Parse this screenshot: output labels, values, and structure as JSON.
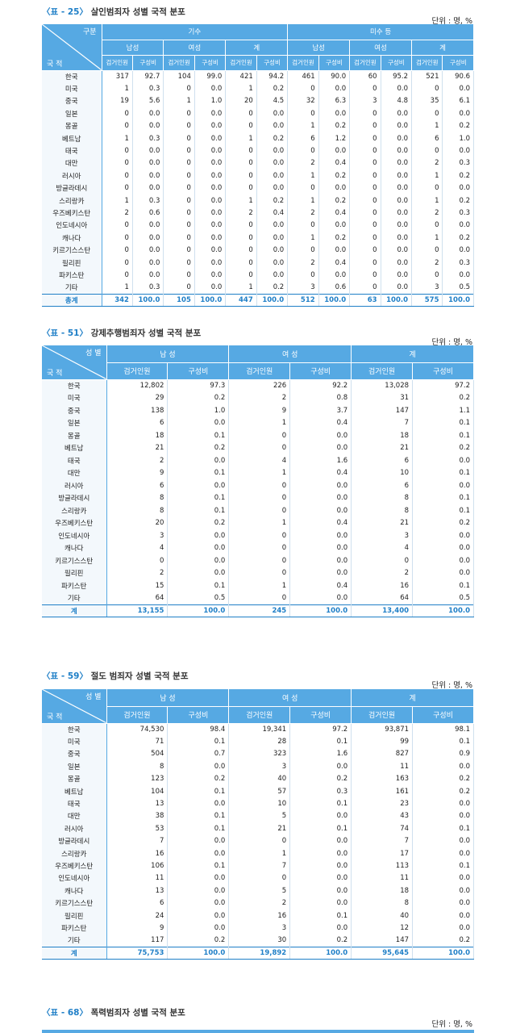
{
  "colors": {
    "header_bg": "#56a9e3",
    "accent": "#1f7fc7"
  },
  "table25": {
    "code": "〈표 - 25〉",
    "title": "살인범죄자 성별 국적 분포",
    "unit": "단위 : 명, %",
    "corner_top": "구분",
    "corner_bottom": "국 적",
    "groups": [
      "기수",
      "미수 등"
    ],
    "subgroups": [
      "남성",
      "여성",
      "계"
    ],
    "col_arrest": "검거인원",
    "col_ratio": "구성비",
    "rows": [
      [
        "한국",
        "317",
        "92.7",
        "104",
        "99.0",
        "421",
        "94.2",
        "461",
        "90.0",
        "60",
        "95.2",
        "521",
        "90.6"
      ],
      [
        "미국",
        "1",
        "0.3",
        "0",
        "0.0",
        "1",
        "0.2",
        "0",
        "0.0",
        "0",
        "0.0",
        "0",
        "0.0"
      ],
      [
        "중국",
        "19",
        "5.6",
        "1",
        "1.0",
        "20",
        "4.5",
        "32",
        "6.3",
        "3",
        "4.8",
        "35",
        "6.1"
      ],
      [
        "일본",
        "0",
        "0.0",
        "0",
        "0.0",
        "0",
        "0.0",
        "0",
        "0.0",
        "0",
        "0.0",
        "0",
        "0.0"
      ],
      [
        "몽골",
        "0",
        "0.0",
        "0",
        "0.0",
        "0",
        "0.0",
        "1",
        "0.2",
        "0",
        "0.0",
        "1",
        "0.2"
      ],
      [
        "베트남",
        "1",
        "0.3",
        "0",
        "0.0",
        "1",
        "0.2",
        "6",
        "1.2",
        "0",
        "0.0",
        "6",
        "1.0"
      ],
      [
        "태국",
        "0",
        "0.0",
        "0",
        "0.0",
        "0",
        "0.0",
        "0",
        "0.0",
        "0",
        "0.0",
        "0",
        "0.0"
      ],
      [
        "대만",
        "0",
        "0.0",
        "0",
        "0.0",
        "0",
        "0.0",
        "2",
        "0.4",
        "0",
        "0.0",
        "2",
        "0.3"
      ],
      [
        "러시아",
        "0",
        "0.0",
        "0",
        "0.0",
        "0",
        "0.0",
        "1",
        "0.2",
        "0",
        "0.0",
        "1",
        "0.2"
      ],
      [
        "방글라데시",
        "0",
        "0.0",
        "0",
        "0.0",
        "0",
        "0.0",
        "0",
        "0.0",
        "0",
        "0.0",
        "0",
        "0.0"
      ],
      [
        "스리랑카",
        "1",
        "0.3",
        "0",
        "0.0",
        "1",
        "0.2",
        "1",
        "0.2",
        "0",
        "0.0",
        "1",
        "0.2"
      ],
      [
        "우즈베키스탄",
        "2",
        "0.6",
        "0",
        "0.0",
        "2",
        "0.4",
        "2",
        "0.4",
        "0",
        "0.0",
        "2",
        "0.3"
      ],
      [
        "인도네시아",
        "0",
        "0.0",
        "0",
        "0.0",
        "0",
        "0.0",
        "0",
        "0.0",
        "0",
        "0.0",
        "0",
        "0.0"
      ],
      [
        "캐나다",
        "0",
        "0.0",
        "0",
        "0.0",
        "0",
        "0.0",
        "1",
        "0.2",
        "0",
        "0.0",
        "1",
        "0.2"
      ],
      [
        "키르기스스탄",
        "0",
        "0.0",
        "0",
        "0.0",
        "0",
        "0.0",
        "0",
        "0.0",
        "0",
        "0.0",
        "0",
        "0.0"
      ],
      [
        "필리핀",
        "0",
        "0.0",
        "0",
        "0.0",
        "0",
        "0.0",
        "2",
        "0.4",
        "0",
        "0.0",
        "2",
        "0.3"
      ],
      [
        "파키스탄",
        "0",
        "0.0",
        "0",
        "0.0",
        "0",
        "0.0",
        "0",
        "0.0",
        "0",
        "0.0",
        "0",
        "0.0"
      ],
      [
        "기타",
        "1",
        "0.3",
        "0",
        "0.0",
        "1",
        "0.2",
        "3",
        "0.6",
        "0",
        "0.0",
        "3",
        "0.5"
      ]
    ],
    "total": [
      "총계",
      "342",
      "100.0",
      "105",
      "100.0",
      "447",
      "100.0",
      "512",
      "100.0",
      "63",
      "100.0",
      "575",
      "100.0"
    ]
  },
  "table51": {
    "code": "〈표 - 51〉",
    "title": "강제추행범죄자 성별 국적 분포",
    "unit": "단위 : 명, %",
    "corner_top": "성 별",
    "corner_bottom": "국 적",
    "groups": [
      "남 성",
      "여 성",
      "계"
    ],
    "col_arrest": "검거인원",
    "col_ratio": "구성비",
    "rows": [
      [
        "한국",
        "12,802",
        "97.3",
        "226",
        "92.2",
        "13,028",
        "97.2"
      ],
      [
        "미국",
        "29",
        "0.2",
        "2",
        "0.8",
        "31",
        "0.2"
      ],
      [
        "중국",
        "138",
        "1.0",
        "9",
        "3.7",
        "147",
        "1.1"
      ],
      [
        "일본",
        "6",
        "0.0",
        "1",
        "0.4",
        "7",
        "0.1"
      ],
      [
        "몽골",
        "18",
        "0.1",
        "0",
        "0.0",
        "18",
        "0.1"
      ],
      [
        "베트남",
        "21",
        "0.2",
        "0",
        "0.0",
        "21",
        "0.2"
      ],
      [
        "태국",
        "2",
        "0.0",
        "4",
        "1.6",
        "6",
        "0.0"
      ],
      [
        "대만",
        "9",
        "0.1",
        "1",
        "0.4",
        "10",
        "0.1"
      ],
      [
        "러시아",
        "6",
        "0.0",
        "0",
        "0.0",
        "6",
        "0.0"
      ],
      [
        "방글라데시",
        "8",
        "0.1",
        "0",
        "0.0",
        "8",
        "0.1"
      ],
      [
        "스리랑카",
        "8",
        "0.1",
        "0",
        "0.0",
        "8",
        "0.1"
      ],
      [
        "우즈베키스탄",
        "20",
        "0.2",
        "1",
        "0.4",
        "21",
        "0.2"
      ],
      [
        "인도네시아",
        "3",
        "0.0",
        "0",
        "0.0",
        "3",
        "0.0"
      ],
      [
        "캐나다",
        "4",
        "0.0",
        "0",
        "0.0",
        "4",
        "0.0"
      ],
      [
        "키르기스스탄",
        "0",
        "0.0",
        "0",
        "0.0",
        "0",
        "0.0"
      ],
      [
        "필리핀",
        "2",
        "0.0",
        "0",
        "0.0",
        "2",
        "0.0"
      ],
      [
        "파키스탄",
        "15",
        "0.1",
        "1",
        "0.4",
        "16",
        "0.1"
      ],
      [
        "기타",
        "64",
        "0.5",
        "0",
        "0.0",
        "64",
        "0.5"
      ]
    ],
    "total": [
      "계",
      "13,155",
      "100.0",
      "245",
      "100.0",
      "13,400",
      "100.0"
    ]
  },
  "table59": {
    "code": "〈표 - 59〉",
    "title": "절도 범죄자 성별 국적 분포",
    "unit": "단위 : 명, %",
    "corner_top": "성 별",
    "corner_bottom": "국 적",
    "groups": [
      "남 성",
      "여 성",
      "계"
    ],
    "col_arrest": "검거인원",
    "col_ratio": "구성비",
    "rows": [
      [
        "한국",
        "74,530",
        "98.4",
        "19,341",
        "97.2",
        "93,871",
        "98.1"
      ],
      [
        "미국",
        "71",
        "0.1",
        "28",
        "0.1",
        "99",
        "0.1"
      ],
      [
        "중국",
        "504",
        "0.7",
        "323",
        "1.6",
        "827",
        "0.9"
      ],
      [
        "일본",
        "8",
        "0.0",
        "3",
        "0.0",
        "11",
        "0.0"
      ],
      [
        "몽골",
        "123",
        "0.2",
        "40",
        "0.2",
        "163",
        "0.2"
      ],
      [
        "베트남",
        "104",
        "0.1",
        "57",
        "0.3",
        "161",
        "0.2"
      ],
      [
        "태국",
        "13",
        "0.0",
        "10",
        "0.1",
        "23",
        "0.0"
      ],
      [
        "대만",
        "38",
        "0.1",
        "5",
        "0.0",
        "43",
        "0.0"
      ],
      [
        "러시아",
        "53",
        "0.1",
        "21",
        "0.1",
        "74",
        "0.1"
      ],
      [
        "방글라데시",
        "7",
        "0.0",
        "0",
        "0.0",
        "7",
        "0.0"
      ],
      [
        "스리랑카",
        "16",
        "0.0",
        "1",
        "0.0",
        "17",
        "0.0"
      ],
      [
        "우즈베키스탄",
        "106",
        "0.1",
        "7",
        "0.0",
        "113",
        "0.1"
      ],
      [
        "인도네시아",
        "11",
        "0.0",
        "0",
        "0.0",
        "11",
        "0.0"
      ],
      [
        "캐나다",
        "13",
        "0.0",
        "5",
        "0.0",
        "18",
        "0.0"
      ],
      [
        "키르기스스탄",
        "6",
        "0.0",
        "2",
        "0.0",
        "8",
        "0.0"
      ],
      [
        "필리핀",
        "24",
        "0.0",
        "16",
        "0.1",
        "40",
        "0.0"
      ],
      [
        "파키스탄",
        "9",
        "0.0",
        "3",
        "0.0",
        "12",
        "0.0"
      ],
      [
        "기타",
        "117",
        "0.2",
        "30",
        "0.2",
        "147",
        "0.2"
      ]
    ],
    "total": [
      "계",
      "75,753",
      "100.0",
      "19,892",
      "100.0",
      "95,645",
      "100.0"
    ]
  },
  "table68": {
    "code": "〈표 - 68〉",
    "title": "폭력범죄자 성별 국적 분포",
    "unit": "단위 : 명, %"
  }
}
